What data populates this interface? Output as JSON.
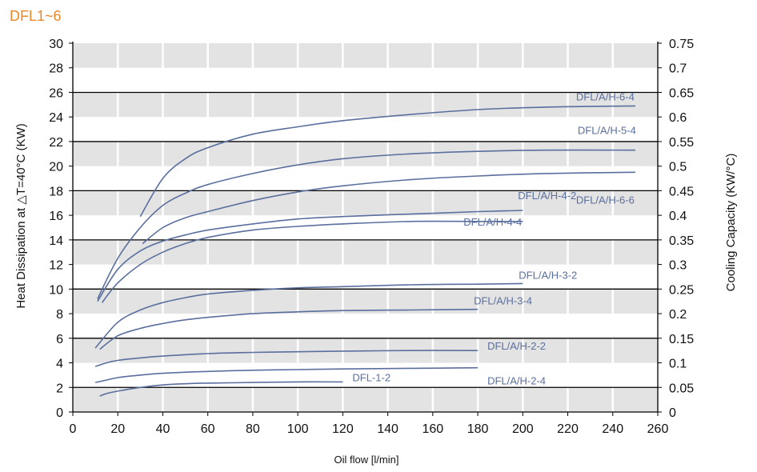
{
  "title": "DFL1~6",
  "colors": {
    "title": "#e8882a",
    "curve": "#5a6f9d",
    "band": "#e3e3e3",
    "major_grid": "#000000",
    "minor_grid": "#ffffff"
  },
  "chart_data": {
    "type": "line",
    "title": "DFL1~6",
    "xlabel": "Oil flow [l/min]",
    "ylabel": "Heat Dissipation at △T=40°C (KW)",
    "y2label": "Cooling Capacity (KW/°C)",
    "xlim": [
      0,
      260
    ],
    "ylim": [
      0,
      30
    ],
    "y2lim": [
      0,
      0.75
    ],
    "x_ticks": [
      0,
      20,
      40,
      60,
      80,
      100,
      120,
      140,
      160,
      180,
      200,
      220,
      240,
      260
    ],
    "y_ticks": [
      0,
      2,
      4,
      6,
      8,
      10,
      12,
      14,
      16,
      18,
      20,
      22,
      24,
      26,
      28,
      30
    ],
    "y2_ticks": [
      "0",
      "0.05",
      "0.1",
      "0.15",
      "0.2",
      "0.25",
      "0.3",
      "0.35",
      "0.4",
      "0.45",
      "0.5",
      "0.55",
      "0.6",
      "0.65",
      "0.7",
      "0.75"
    ],
    "grid": true,
    "series": [
      {
        "name": "DFL/A/H-6-4",
        "x": [
          30,
          40,
          50,
          60,
          80,
          100,
          120,
          150,
          180,
          210,
          250
        ],
        "y": [
          15.9,
          19.0,
          20.6,
          21.5,
          22.6,
          23.2,
          23.7,
          24.2,
          24.6,
          24.8,
          24.9
        ]
      },
      {
        "name": "DFL/A/H-5-4",
        "x": [
          11,
          20,
          30,
          40,
          50,
          60,
          80,
          100,
          120,
          150,
          180,
          210,
          250
        ],
        "y": [
          9.2,
          12.5,
          15.0,
          16.8,
          17.8,
          18.5,
          19.4,
          20.1,
          20.6,
          21.0,
          21.2,
          21.3,
          21.3
        ]
      },
      {
        "name": "DFL/A/H-6-6",
        "x": [
          31,
          40,
          50,
          60,
          80,
          100,
          120,
          150,
          180,
          210,
          250
        ],
        "y": [
          13.7,
          15.0,
          15.8,
          16.3,
          17.2,
          17.9,
          18.4,
          18.9,
          19.2,
          19.4,
          19.5
        ]
      },
      {
        "name": "DFL/A/H-4-2",
        "x": [
          11,
          20,
          30,
          40,
          50,
          60,
          80,
          100,
          120,
          150,
          180,
          200
        ],
        "y": [
          9.0,
          11.6,
          13.1,
          13.9,
          14.4,
          14.8,
          15.3,
          15.7,
          15.9,
          16.1,
          16.3,
          16.4
        ]
      },
      {
        "name": "DFL/A/H-4-4",
        "x": [
          13,
          20,
          30,
          40,
          50,
          60,
          80,
          100,
          120,
          150,
          180,
          200
        ],
        "y": [
          8.9,
          10.5,
          12.0,
          13.0,
          13.7,
          14.2,
          14.8,
          15.1,
          15.3,
          15.5,
          15.5,
          15.5
        ]
      },
      {
        "name": "DFL/A/H-3-2",
        "x": [
          10,
          20,
          30,
          40,
          50,
          60,
          80,
          100,
          120,
          150,
          180,
          200
        ],
        "y": [
          5.2,
          7.3,
          8.3,
          8.9,
          9.3,
          9.6,
          9.9,
          10.1,
          10.2,
          10.35,
          10.4,
          10.45
        ]
      },
      {
        "name": "DFL/A/H-3-4",
        "x": [
          12,
          20,
          30,
          40,
          50,
          60,
          80,
          100,
          120,
          150,
          180
        ],
        "y": [
          5.1,
          6.2,
          6.8,
          7.2,
          7.5,
          7.7,
          8.0,
          8.15,
          8.25,
          8.3,
          8.35
        ]
      },
      {
        "name": "DFL/A/H-2-2",
        "x": [
          10,
          15,
          20,
          30,
          40,
          60,
          80,
          100,
          120,
          150,
          180
        ],
        "y": [
          3.7,
          4.0,
          4.2,
          4.4,
          4.55,
          4.75,
          4.85,
          4.9,
          4.95,
          5.0,
          5.0
        ]
      },
      {
        "name": "DFL/A/H-2-4",
        "x": [
          10,
          15,
          20,
          30,
          40,
          60,
          80,
          100,
          120,
          150,
          180
        ],
        "y": [
          2.4,
          2.6,
          2.8,
          3.0,
          3.15,
          3.3,
          3.4,
          3.45,
          3.5,
          3.55,
          3.6
        ]
      },
      {
        "name": "DFL-1-2",
        "x": [
          12,
          15,
          20,
          30,
          40,
          50,
          60,
          80,
          100,
          120
        ],
        "y": [
          1.3,
          1.5,
          1.7,
          2.0,
          2.2,
          2.3,
          2.35,
          2.4,
          2.45,
          2.45
        ]
      }
    ]
  }
}
